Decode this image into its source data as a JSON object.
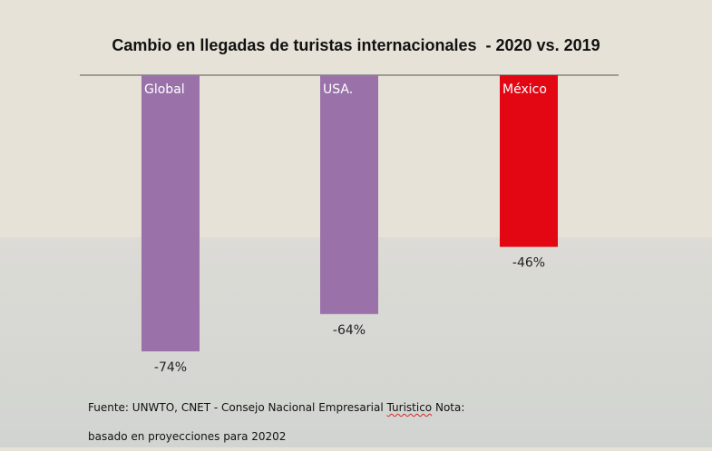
{
  "chart_data": {
    "type": "bar",
    "title": "Cambio en llegadas de turistas internacionales  - 2020 vs. 2019",
    "categories": [
      "Global",
      "USA.",
      "México"
    ],
    "values": [
      -74,
      -64,
      -46
    ],
    "value_labels": [
      "-74%",
      "-64%",
      "-46%"
    ],
    "colors": [
      "#9a72a9",
      "#9a72a9",
      "#e30613"
    ],
    "ylim": [
      -74,
      0
    ],
    "grid": false,
    "legend": "none"
  },
  "source": {
    "line1_prefix": "Fuente: UNWTO, CNET - Consejo Nacional Empresarial ",
    "line1_squiggle": "Turistico",
    "line1_suffix": " Nota:",
    "line2": "basado en proyecciones para 20202"
  }
}
